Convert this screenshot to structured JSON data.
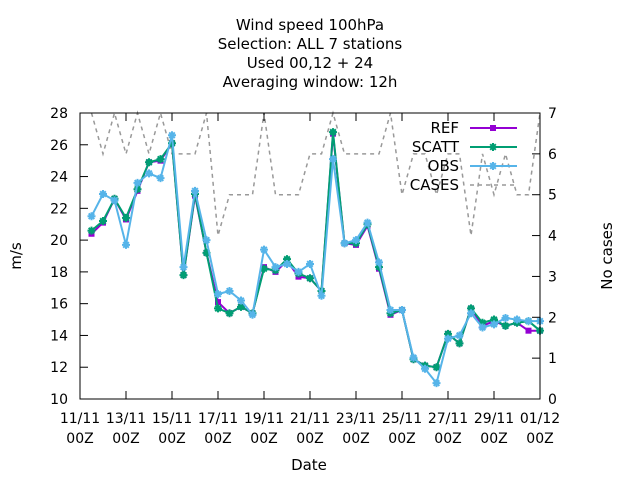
{
  "chart_data": {
    "type": "line",
    "title": [
      "Wind speed 100hPa",
      "Selection: ALL      7 stations",
      "Used  00,12  + 24",
      "Averaging window: 12h"
    ],
    "xlabel": "Date",
    "ylabel": "m/s",
    "y2label": "No cases",
    "x_ticks": [
      "11/11 00Z",
      "13/11 00Z",
      "15/11 00Z",
      "17/11 00Z",
      "19/11 00Z",
      "21/11 00Z",
      "23/11 00Z",
      "25/11 00Z",
      "27/11 00Z",
      "29/11 00Z",
      "01/12 00Z"
    ],
    "x_tick_lines": [
      [
        "11/11",
        "00Z"
      ],
      [
        "13/11",
        "00Z"
      ],
      [
        "15/11",
        "00Z"
      ],
      [
        "17/11",
        "00Z"
      ],
      [
        "19/11",
        "00Z"
      ],
      [
        "21/11",
        "00Z"
      ],
      [
        "23/11",
        "00Z"
      ],
      [
        "25/11",
        "00Z"
      ],
      [
        "27/11",
        "00Z"
      ],
      [
        "29/11",
        "00Z"
      ],
      [
        "01/12",
        "00Z"
      ]
    ],
    "x_unit": "days since 11/11 00Z",
    "xlim": [
      0,
      20
    ],
    "ylim": [
      10,
      28
    ],
    "y_ticks": [
      10,
      12,
      14,
      16,
      18,
      20,
      22,
      24,
      26,
      28
    ],
    "y2lim": [
      0,
      7
    ],
    "y2_ticks": [
      0,
      1,
      2,
      3,
      4,
      5,
      6,
      7
    ],
    "legend_position": "top-right",
    "series": [
      {
        "name": "REF",
        "color": "#9400d3",
        "axis": "y",
        "marker": "square",
        "dash": "solid",
        "x": [
          0.5,
          1,
          1.5,
          2,
          2.5,
          3,
          3.5,
          4,
          4.5,
          5,
          5.5,
          6,
          6.5,
          7,
          7.5,
          8,
          8.5,
          9,
          9.5,
          10,
          10.5,
          11,
          11.5,
          12,
          12.5,
          13,
          13.5,
          14,
          14.5,
          15,
          15.5,
          16,
          16.5,
          17,
          17.5,
          18,
          18.5,
          19,
          19.5,
          20
        ],
        "values": [
          20.4,
          21.1,
          22.6,
          21.3,
          23.1,
          24.9,
          25.0,
          26.1,
          17.8,
          22.8,
          19.2,
          16.1,
          15.4,
          15.8,
          15.4,
          18.3,
          18.0,
          18.7,
          17.7,
          17.6,
          16.8,
          26.7,
          19.8,
          19.7,
          20.9,
          18.2,
          15.3,
          15.6,
          12.5,
          12.1,
          12.0,
          14.1,
          13.5,
          15.7,
          14.6,
          14.9,
          14.6,
          14.8,
          14.3,
          14.3
        ]
      },
      {
        "name": "SCATT",
        "color": "#009e73",
        "axis": "y",
        "marker": "star",
        "dash": "solid",
        "x": [
          0.5,
          1,
          1.5,
          2,
          2.5,
          3,
          3.5,
          4,
          4.5,
          5,
          5.5,
          6,
          6.5,
          7,
          7.5,
          8,
          8.5,
          9,
          9.5,
          10,
          10.5,
          11,
          11.5,
          12,
          12.5,
          13,
          13.5,
          14,
          14.5,
          15,
          15.5,
          16,
          16.5,
          17,
          17.5,
          18,
          18.5,
          19,
          19.5,
          20
        ],
        "values": [
          20.6,
          21.2,
          22.6,
          21.4,
          23.2,
          24.9,
          25.1,
          26.1,
          17.8,
          22.9,
          19.2,
          15.7,
          15.4,
          15.8,
          15.4,
          18.2,
          18.1,
          18.8,
          17.9,
          17.6,
          16.8,
          26.8,
          19.8,
          19.8,
          21.0,
          18.3,
          15.4,
          15.6,
          12.5,
          12.1,
          12.0,
          14.1,
          13.5,
          15.7,
          14.8,
          15.0,
          14.6,
          14.8,
          14.9,
          14.3
        ]
      },
      {
        "name": "OBS",
        "color": "#56b4e9",
        "axis": "y",
        "marker": "star",
        "dash": "solid",
        "x": [
          0.5,
          1,
          1.5,
          2,
          2.5,
          3,
          3.5,
          4,
          4.5,
          5,
          5.5,
          6,
          6.5,
          7,
          7.5,
          8,
          8.5,
          9,
          9.5,
          10,
          10.5,
          11,
          11.5,
          12,
          12.5,
          13,
          13.5,
          14,
          14.5,
          15,
          15.5,
          16,
          16.5,
          17,
          17.5,
          18,
          18.5,
          19,
          19.5,
          20
        ],
        "values": [
          21.5,
          22.9,
          22.5,
          19.7,
          23.6,
          24.2,
          23.9,
          26.6,
          18.3,
          23.1,
          20.0,
          16.6,
          16.8,
          16.2,
          15.3,
          19.4,
          18.3,
          18.5,
          18.0,
          18.5,
          16.5,
          25.1,
          19.8,
          20.0,
          21.1,
          18.6,
          15.6,
          15.6,
          12.6,
          11.9,
          11.0,
          13.8,
          14.0,
          15.4,
          14.5,
          14.7,
          15.1,
          15.0,
          14.9,
          14.9
        ]
      },
      {
        "name": "CASES",
        "color": "#999999",
        "axis": "y2",
        "marker": "none",
        "dash": "dashed",
        "x": [
          0.5,
          1,
          1.5,
          2,
          2.5,
          3,
          3.5,
          4,
          4.5,
          5,
          5.5,
          6,
          6.5,
          7,
          7.5,
          8,
          8.5,
          9,
          9.5,
          10,
          10.5,
          11,
          11.5,
          12,
          12.5,
          13,
          13.5,
          14,
          14.5,
          15,
          15.5,
          16,
          16.5,
          17,
          17.5,
          18,
          18.5,
          19,
          19.5,
          20
        ],
        "values": [
          7,
          6,
          7,
          6,
          7,
          6,
          7,
          6,
          6,
          6,
          7,
          4,
          5,
          5,
          5,
          7,
          5,
          5,
          5,
          6,
          6,
          7,
          6,
          6,
          6,
          6,
          7,
          5,
          6,
          6,
          5,
          6,
          6,
          4,
          6,
          5,
          6,
          5,
          5,
          7
        ]
      }
    ]
  }
}
